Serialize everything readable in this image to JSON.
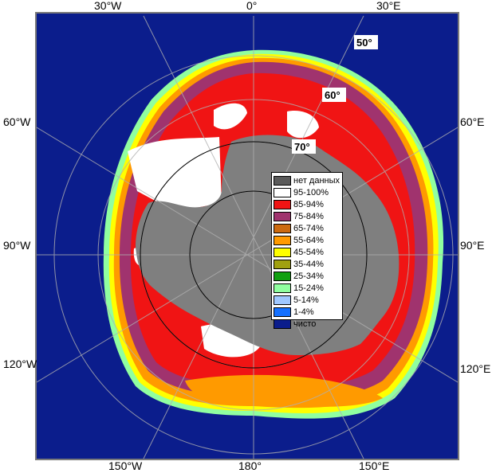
{
  "map": {
    "longitude_labels": {
      "top": [
        "30°W",
        "0°",
        "30°E"
      ],
      "left": [
        "60°W",
        "90°W",
        "120°W"
      ],
      "right": [
        "60°E",
        "90°E",
        "120°E"
      ],
      "bottom": [
        "150°W",
        "180°",
        "150°E"
      ]
    },
    "latitude_labels": [
      "50°",
      "60°",
      "70°"
    ],
    "colors": {
      "ocean": "#0b1d8c",
      "land": "#7f7f7f",
      "frame": "#7a7a7a",
      "graticule": "#b0b0b0"
    }
  },
  "legend": {
    "items": [
      {
        "label": "нет данных",
        "color": "#5a5a5a"
      },
      {
        "label": "95-100%",
        "color": "#ffffff"
      },
      {
        "label": "85-94%",
        "color": "#f01414"
      },
      {
        "label": "75-84%",
        "color": "#a0336e"
      },
      {
        "label": "65-74%",
        "color": "#cc6a10"
      },
      {
        "label": "55-64%",
        "color": "#ff9a00"
      },
      {
        "label": "45-54%",
        "color": "#ffff00"
      },
      {
        "label": "35-44%",
        "color": "#a0a010"
      },
      {
        "label": "25-34%",
        "color": "#10a010"
      },
      {
        "label": "15-24%",
        "color": "#90ffa0"
      },
      {
        "label": "5-14%",
        "color": "#a0c8ff"
      },
      {
        "label": "1-4%",
        "color": "#1470ff"
      },
      {
        "label": "чисто",
        "color": "#0b1d8c"
      }
    ]
  }
}
